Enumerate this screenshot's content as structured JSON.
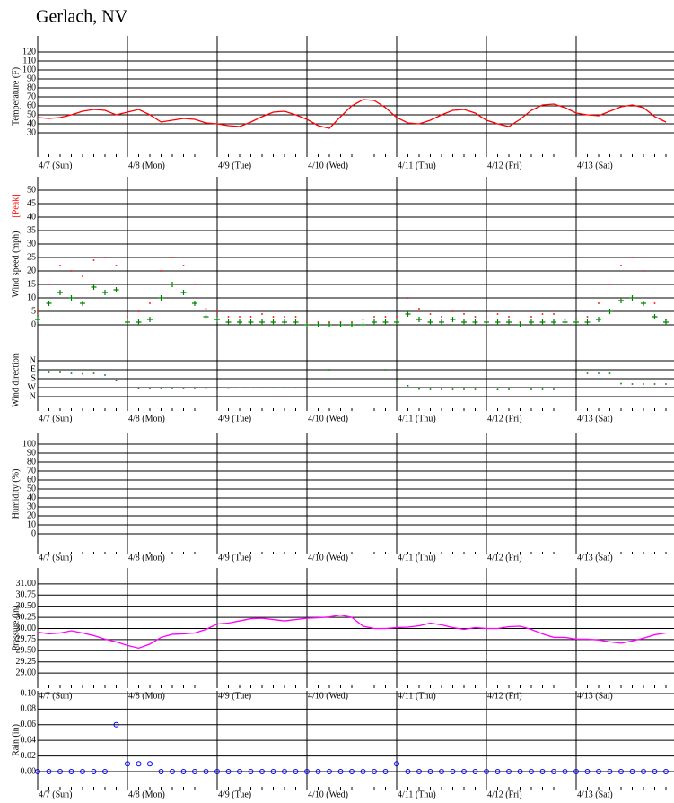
{
  "title": "Gerlach, NV",
  "chart_data": [
    {
      "type": "line",
      "ylabel": "Temperature (F)",
      "categories": [
        "4/7 (Sun)",
        null,
        null,
        null,
        null,
        null,
        null,
        null,
        "4/8 (Mon)",
        null,
        null,
        null,
        null,
        null,
        null,
        null,
        "4/9 (Tue)",
        null,
        null,
        null,
        null,
        null,
        null,
        null,
        "4/10 (Wed)",
        null,
        null,
        null,
        null,
        null,
        null,
        null,
        "4/11 (Thu)",
        null,
        null,
        null,
        null,
        null,
        null,
        null,
        "4/12 (Fri)",
        null,
        null,
        null,
        null,
        null,
        null,
        null,
        "4/13 (Sat)",
        null,
        null,
        null,
        null,
        null,
        null,
        null,
        null
      ],
      "ylim": [
        3,
        138
      ],
      "yticks": [
        30,
        40,
        50,
        60,
        70,
        80,
        90,
        100,
        110,
        120
      ],
      "grid": true,
      "series": [
        {
          "color": "#ff0000",
          "values": [
            47,
            46,
            47,
            50,
            54,
            56,
            55,
            50,
            53,
            56,
            50,
            42,
            44,
            46,
            45,
            41,
            40,
            38,
            37,
            42,
            48,
            53,
            54,
            50,
            45,
            38,
            35,
            48,
            60,
            67,
            66,
            58,
            47,
            41,
            40,
            44,
            50,
            55,
            56,
            52,
            44,
            40,
            37,
            45,
            55,
            61,
            62,
            58,
            52,
            50,
            49,
            54,
            59,
            61,
            58,
            48,
            42
          ]
        }
      ]
    },
    {
      "type": "scatter",
      "ylabel": "Wind speed (mph)",
      "y2label": "Wind direction",
      "categories": [
        "4/7 (Sun)",
        null,
        null,
        null,
        null,
        null,
        null,
        null,
        "4/8 (Mon)",
        null,
        null,
        null,
        null,
        null,
        null,
        null,
        "4/9 (Tue)",
        null,
        null,
        null,
        null,
        null,
        null,
        null,
        "4/10 (Wed)",
        null,
        null,
        null,
        null,
        null,
        null,
        null,
        "4/11 (Thu)",
        null,
        null,
        null,
        null,
        null,
        null,
        null,
        "4/12 (Fri)",
        null,
        null,
        null,
        null,
        null,
        null,
        null,
        "4/13 (Sat)",
        null,
        null,
        null,
        null,
        null,
        null,
        null,
        null
      ],
      "ylim": [
        0,
        55
      ],
      "yticks": [
        0,
        5,
        10,
        15,
        20,
        25,
        30,
        35,
        40,
        45,
        50
      ],
      "grid": true,
      "y2lim": [
        504,
        -108
      ],
      "y2ticks": [
        {
          "value": 0,
          "label": "N"
        },
        {
          "value": 90,
          "label": "E"
        },
        {
          "value": 180,
          "label": "S"
        },
        {
          "value": 270,
          "label": "W"
        },
        {
          "value": 360,
          "label": "N"
        }
      ],
      "series": [
        {
          "name": "[Peak]",
          "color": "#ff0000",
          "marker": "dot",
          "values": [
            5,
            15,
            22,
            20,
            18,
            24,
            25,
            22,
            3,
            5,
            8,
            20,
            25,
            22,
            15,
            6,
            5,
            3,
            3,
            3,
            4,
            3,
            3,
            3,
            1,
            1,
            1,
            1,
            1,
            2,
            3,
            3,
            3,
            10,
            6,
            4,
            3,
            5,
            4,
            3,
            3,
            4,
            3,
            1,
            3,
            4,
            4,
            2,
            2,
            3,
            8,
            15,
            22,
            25,
            20,
            8,
            2
          ]
        },
        {
          "color": "#008000",
          "marker": "plus",
          "values": [
            2,
            8,
            12,
            10,
            8,
            14,
            12,
            13,
            1,
            1,
            2,
            10,
            15,
            12,
            8,
            3,
            2,
            1,
            1,
            1,
            1,
            1,
            1,
            1,
            0,
            0,
            0,
            0,
            0,
            0,
            1,
            1,
            1,
            4,
            2,
            1,
            1,
            2,
            1,
            1,
            1,
            1,
            1,
            0,
            1,
            1,
            1,
            1,
            1,
            1,
            2,
            5,
            9,
            10,
            8,
            3,
            1
          ]
        },
        {
          "color": "#008000",
          "marker": "dot",
          "axis": "y2",
          "values": [
            120,
            117,
            117,
            126,
            130,
            126,
            144,
            200,
            280,
            280,
            280,
            279,
            279,
            279,
            279,
            279,
            279,
            275,
            272,
            272,
            270,
            270,
            270,
            270,
            null,
            null,
            90,
            null,
            null,
            null,
            null,
            90,
            200,
            250,
            285,
            288,
            288,
            288,
            288,
            288,
            288,
            290,
            288,
            null,
            288,
            288,
            288,
            null,
            117,
            126,
            126,
            126,
            230,
            234,
            234,
            234,
            234
          ]
        }
      ]
    },
    {
      "type": "line",
      "ylabel": "Humidity (%)",
      "categories": [
        "4/7 (Sun)",
        null,
        null,
        null,
        null,
        null,
        null,
        null,
        "4/8 (Mon)",
        null,
        null,
        null,
        null,
        null,
        null,
        null,
        "4/9 (Tue)",
        null,
        null,
        null,
        null,
        null,
        null,
        null,
        "4/10 (Wed)",
        null,
        null,
        null,
        null,
        null,
        null,
        null,
        "4/11 (Thu)",
        null,
        null,
        null,
        null,
        null,
        null,
        null,
        "4/12 (Fri)",
        null,
        null,
        null,
        null,
        null,
        null,
        null,
        "4/13 (Sat)",
        null,
        null,
        null,
        null,
        null,
        null,
        null,
        null
      ],
      "ylim": [
        -23,
        112
      ],
      "yticks": [
        0,
        10,
        20,
        30,
        40,
        50,
        60,
        70,
        80,
        90,
        100
      ],
      "grid": true,
      "series": []
    },
    {
      "type": "line",
      "ylabel": "Pressure (in)",
      "categories": [
        "4/7 (Sun)",
        null,
        null,
        null,
        null,
        null,
        null,
        null,
        "4/8 (Mon)",
        null,
        null,
        null,
        null,
        null,
        null,
        null,
        "4/9 (Tue)",
        null,
        null,
        null,
        null,
        null,
        null,
        null,
        "4/10 (Wed)",
        null,
        null,
        null,
        null,
        null,
        null,
        null,
        "4/11 (Thu)",
        null,
        null,
        null,
        null,
        null,
        null,
        null,
        "4/12 (Fri)",
        null,
        null,
        null,
        null,
        null,
        null,
        null,
        "4/13 (Sat)",
        null,
        null,
        null,
        null,
        null,
        null,
        null,
        null
      ],
      "ylim": [
        28.66,
        31.36
      ],
      "grid": true,
      "yticks": [
        {
          "value": 29,
          "label": "29.00"
        },
        {
          "value": 29.25,
          "label": "29.25"
        },
        {
          "value": 29.5,
          "label": "29.50"
        },
        {
          "value": 29.75,
          "label": "29.75"
        },
        {
          "value": 30,
          "label": "30.00"
        },
        {
          "value": 30.25,
          "label": "30.25"
        },
        {
          "value": 30.5,
          "label": "30.50"
        },
        {
          "value": 30.75,
          "label": "30.75"
        },
        {
          "value": 31,
          "label": "31.00"
        }
      ],
      "series": [
        {
          "color": "#ff00ff",
          "values": [
            29.92,
            29.88,
            29.9,
            29.95,
            29.9,
            29.84,
            29.76,
            29.7,
            29.62,
            29.56,
            29.65,
            29.8,
            29.87,
            29.88,
            29.9,
            29.98,
            30.1,
            30.12,
            30.17,
            30.22,
            30.23,
            30.2,
            30.17,
            30.2,
            30.23,
            30.24,
            30.26,
            30.3,
            30.25,
            30.05,
            30,
            30,
            30.02,
            30.03,
            30.06,
            30.12,
            30.08,
            30.02,
            29.98,
            30.02,
            30,
            30,
            30.04,
            30.05,
            29.98,
            29.88,
            29.8,
            29.8,
            29.76,
            29.76,
            29.74,
            29.7,
            29.67,
            29.72,
            29.78,
            29.86,
            29.9
          ]
        }
      ]
    },
    {
      "type": "scatter",
      "ylabel": "Rain (in)",
      "categories": [
        "4/7 (Sun)",
        null,
        null,
        null,
        null,
        null,
        null,
        null,
        "4/8 (Mon)",
        null,
        null,
        null,
        null,
        null,
        null,
        null,
        "4/9 (Tue)",
        null,
        null,
        null,
        null,
        null,
        null,
        null,
        "4/10 (Wed)",
        null,
        null,
        null,
        null,
        null,
        null,
        null,
        "4/11 (Thu)",
        null,
        null,
        null,
        null,
        null,
        null,
        null,
        "4/12 (Fri)",
        null,
        null,
        null,
        null,
        null,
        null,
        null,
        "4/13 (Sat)",
        null,
        null,
        null,
        null,
        null,
        null,
        null,
        null
      ],
      "ylim": [
        -0.023,
        0.1034
      ],
      "grid": true,
      "yticks": [
        {
          "value": 0,
          "label": "0.00"
        },
        {
          "value": 0.02,
          "label": "0.02"
        },
        {
          "value": 0.04,
          "label": "0.04"
        },
        {
          "value": 0.06,
          "label": "0.06"
        },
        {
          "value": 0.08,
          "label": "0.08"
        },
        {
          "value": 0.1,
          "label": "0.10"
        }
      ],
      "series": [
        {
          "color": "#0000ff",
          "marker": "circle",
          "values": [
            0,
            0,
            0,
            0,
            0,
            0,
            0,
            0.06,
            0.01,
            0.01,
            0.01,
            0,
            0,
            0,
            0,
            0,
            0,
            0,
            0,
            0,
            0,
            0,
            0,
            0,
            0,
            0,
            0,
            0,
            0,
            0,
            0,
            0,
            0.01,
            0,
            0,
            0,
            0,
            0,
            0,
            0,
            0,
            0,
            0,
            0,
            0,
            0,
            0,
            0,
            0,
            0,
            0,
            0,
            0,
            0,
            0,
            0,
            0
          ]
        }
      ]
    }
  ]
}
